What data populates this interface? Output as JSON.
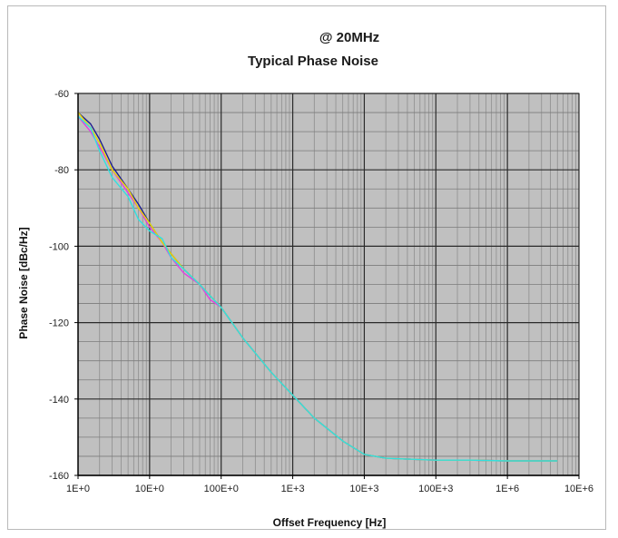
{
  "chart_data": {
    "type": "line",
    "title": "@ 20MHz",
    "subtitle": "Typical Phase Noise",
    "xlabel": "Offset Frequency [Hz]",
    "ylabel": "Phase Noise [dBc/Hz]",
    "x_scale": "log10",
    "xlim": [
      1,
      10000000
    ],
    "ylim": [
      -160,
      -60
    ],
    "x_tick_values": [
      1,
      10,
      100,
      1000,
      10000,
      100000,
      1000000,
      10000000
    ],
    "x_tick_labels": [
      "1E+0",
      "10E+0",
      "100E+0",
      "1E+3",
      "10E+3",
      "100E+3",
      "1E+6",
      "10E+6"
    ],
    "y_tick_values": [
      -60,
      -80,
      -100,
      -120,
      -140,
      -160
    ],
    "y_tick_labels": [
      "-60",
      "-80",
      "-100",
      "-120",
      "-140",
      "-160"
    ],
    "grid": true,
    "plot_background": "#c0c0c0",
    "legend": "none",
    "series": [
      {
        "color": "#1f1f8f",
        "x": [
          1,
          1.5,
          2,
          3,
          5,
          7,
          10,
          15,
          20,
          30,
          50,
          70,
          100,
          200,
          500,
          1000,
          2000,
          5000,
          10000,
          20000,
          50000,
          100000,
          300000,
          1000000,
          5000000
        ],
        "y": [
          -65,
          -68,
          -72,
          -79,
          -85,
          -89,
          -94,
          -99,
          -102,
          -106,
          -110,
          -113,
          -116,
          -124,
          -133,
          -139,
          -145,
          -151,
          -154.5,
          -155.5,
          -155.8,
          -156,
          -156,
          -156.2,
          -156.2
        ]
      },
      {
        "color": "#e040e0",
        "x": [
          1,
          1.5,
          2,
          3,
          5,
          7,
          10,
          15,
          20,
          30,
          50,
          70,
          100,
          200,
          500,
          1000,
          2000,
          5000,
          10000,
          20000,
          50000,
          100000,
          300000,
          1000000,
          5000000
        ],
        "y": [
          -66,
          -70,
          -74,
          -80,
          -86,
          -90,
          -95,
          -99,
          -103,
          -107,
          -110,
          -114,
          -116,
          -124,
          -133,
          -139,
          -145,
          -151,
          -154.5,
          -155.5,
          -155.8,
          -156,
          -156,
          -156.2,
          -156.2
        ]
      },
      {
        "color": "#e8d800",
        "x": [
          1,
          1.5,
          2,
          3,
          5,
          7,
          10,
          15,
          20,
          30,
          50,
          70,
          100,
          200,
          500,
          1000,
          2000,
          5000,
          10000,
          20000,
          50000,
          100000,
          300000,
          1000000,
          5000000
        ],
        "y": [
          -65,
          -69,
          -73,
          -80,
          -85,
          -90,
          -94,
          -99,
          -102,
          -106,
          -110,
          -113,
          -116,
          -124,
          -133,
          -139,
          -145,
          -151,
          -154.5,
          -155.5,
          -155.8,
          -156,
          -156,
          -156.2,
          -156.2
        ]
      },
      {
        "color": "#30e0e0",
        "x": [
          1,
          1.5,
          2,
          3,
          5,
          7,
          10,
          15,
          20,
          30,
          50,
          70,
          100,
          200,
          500,
          1000,
          2000,
          5000,
          10000,
          20000,
          50000,
          100000,
          300000,
          1000000,
          5000000
        ],
        "y": [
          -66,
          -69,
          -75,
          -82,
          -87,
          -93,
          -96,
          -98,
          -103,
          -106,
          -110,
          -113,
          -116,
          -124,
          -133,
          -139,
          -145,
          -151,
          -154.5,
          -155.5,
          -155.8,
          -156,
          -156,
          -156.2,
          -156.2
        ]
      }
    ]
  }
}
